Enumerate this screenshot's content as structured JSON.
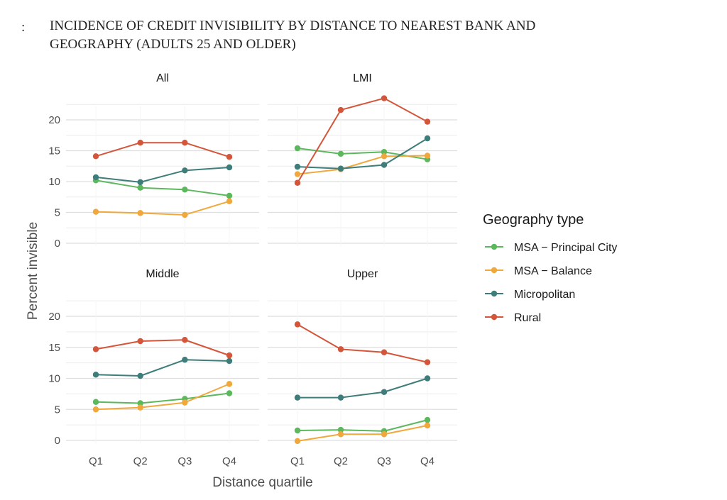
{
  "heading": {
    "marker": ":",
    "line1": "INCIDENCE OF CREDIT INVISIBILITY BY DISTANCE TO NEAREST BANK AND",
    "line2": "GEOGRAPHY (ADULTS 25 AND OLDER)"
  },
  "chart_data": {
    "type": "line",
    "ylabel": "Percent invisible",
    "xlabel": "Distance quartile",
    "categories": [
      "Q1",
      "Q2",
      "Q3",
      "Q4"
    ],
    "ylim": [
      0,
      23
    ],
    "yticks": [
      0,
      5,
      10,
      15,
      20
    ],
    "grid": true,
    "legend": {
      "title": "Geography type",
      "position": "right",
      "entries": [
        "MSA − Principal City",
        "MSA − Balance",
        "Micropolitan",
        "Rural"
      ]
    },
    "colors": {
      "MSA − Principal City": "#5cb85c",
      "MSA − Balance": "#f0a83c",
      "Micropolitan": "#3d7d7a",
      "Rural": "#d4553a"
    },
    "panels": [
      {
        "title": "All",
        "series": [
          {
            "name": "MSA − Principal City",
            "values": [
              10.2,
              9.0,
              8.7,
              7.7
            ]
          },
          {
            "name": "MSA − Balance",
            "values": [
              5.1,
              4.9,
              4.6,
              6.8
            ]
          },
          {
            "name": "Micropolitan",
            "values": [
              10.7,
              9.9,
              11.8,
              12.3
            ]
          },
          {
            "name": "Rural",
            "values": [
              14.1,
              16.3,
              16.3,
              14.0
            ]
          }
        ]
      },
      {
        "title": "LMI",
        "series": [
          {
            "name": "MSA − Principal City",
            "values": [
              15.4,
              14.5,
              14.8,
              13.6
            ]
          },
          {
            "name": "MSA − Balance",
            "values": [
              11.2,
              12.0,
              14.1,
              14.2
            ]
          },
          {
            "name": "Micropolitan",
            "values": [
              12.4,
              12.1,
              12.7,
              17.0
            ]
          },
          {
            "name": "Rural",
            "values": [
              9.8,
              21.6,
              23.5,
              19.7
            ]
          }
        ]
      },
      {
        "title": "Middle",
        "series": [
          {
            "name": "MSA − Principal City",
            "values": [
              6.2,
              6.0,
              6.7,
              7.6
            ]
          },
          {
            "name": "MSA − Balance",
            "values": [
              5.0,
              5.3,
              6.1,
              9.1
            ]
          },
          {
            "name": "Micropolitan",
            "values": [
              10.6,
              10.4,
              13.0,
              12.8
            ]
          },
          {
            "name": "Rural",
            "values": [
              14.7,
              16.0,
              16.2,
              13.7
            ]
          }
        ]
      },
      {
        "title": "Upper",
        "series": [
          {
            "name": "MSA − Principal City",
            "values": [
              1.6,
              1.7,
              1.5,
              3.3
            ]
          },
          {
            "name": "MSA − Balance",
            "values": [
              -0.1,
              1.0,
              1.0,
              2.4
            ]
          },
          {
            "name": "Micropolitan",
            "values": [
              6.9,
              6.9,
              7.8,
              10.0
            ]
          },
          {
            "name": "Rural",
            "values": [
              18.7,
              14.7,
              14.2,
              12.6
            ]
          }
        ]
      }
    ]
  }
}
